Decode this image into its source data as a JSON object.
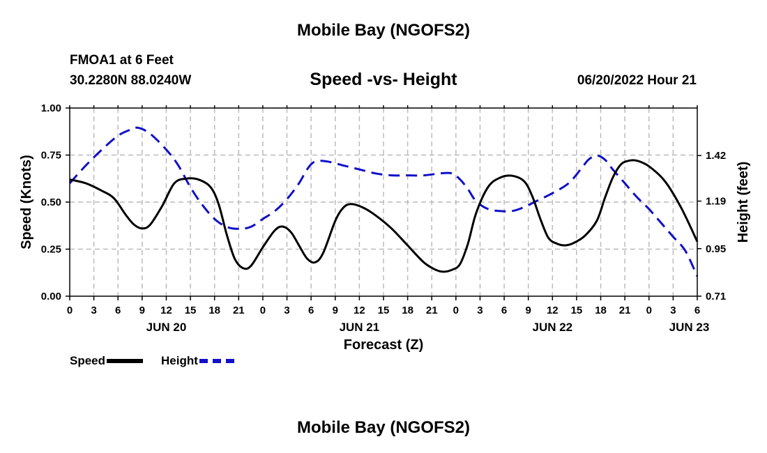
{
  "page": {
    "title_top": "Mobile Bay (NGOFS2)",
    "station": "FMOA1 at 6 Feet",
    "coords": "30.2280N  88.0240W",
    "subtitle": "Speed -vs- Height",
    "timestamp": "06/20/2022 Hour 21",
    "title_bottom": "Mobile Bay (NGOFS2)"
  },
  "chart_data": {
    "type": "line",
    "xlabel": "Forecast (Z)",
    "ylabel_left": "Speed (Knots)",
    "ylabel_right": "Height (feet)",
    "x_unit": "hours from 06/20 00Z",
    "xlim": [
      0,
      78
    ],
    "ylim_left": [
      0,
      1
    ],
    "ylim_right": [
      0.71,
      1.66
    ],
    "left_ticks": [
      "0.00",
      "0.25",
      "0.50",
      "0.75",
      "1.00"
    ],
    "left_tick_values": [
      0,
      0.25,
      0.5,
      0.75,
      1.0
    ],
    "right_ticks": [
      "0.71",
      "0.95",
      "1.19",
      "1.42"
    ],
    "right_tick_values": [
      0.71,
      0.95,
      1.19,
      1.42
    ],
    "x_tick_labels": [
      "0",
      "3",
      "6",
      "9",
      "12",
      "15",
      "18",
      "21",
      "0",
      "3",
      "6",
      "9",
      "12",
      "15",
      "18",
      "21",
      "0",
      "3",
      "6",
      "9",
      "12",
      "15",
      "18",
      "21",
      "0",
      "3",
      "6"
    ],
    "x_tick_values": [
      0,
      3,
      6,
      9,
      12,
      15,
      18,
      21,
      24,
      27,
      30,
      33,
      36,
      39,
      42,
      45,
      48,
      51,
      54,
      57,
      60,
      63,
      66,
      69,
      72,
      75,
      78
    ],
    "date_labels": [
      {
        "label": "JUN 20",
        "x": 12
      },
      {
        "label": "JUN 21",
        "x": 36
      },
      {
        "label": "JUN 22",
        "x": 60
      },
      {
        "label": "JUN 23",
        "x": 77
      }
    ],
    "grid": true,
    "legend_placement": "bottom-left",
    "series": [
      {
        "name": "Speed",
        "axis": "left",
        "color": "#000000",
        "style": "solid",
        "points": [
          [
            0,
            0.62
          ],
          [
            2,
            0.6
          ],
          [
            4,
            0.56
          ],
          [
            5.5,
            0.52
          ],
          [
            7,
            0.43
          ],
          [
            8,
            0.38
          ],
          [
            9,
            0.36
          ],
          [
            10,
            0.38
          ],
          [
            11.5,
            0.48
          ],
          [
            13,
            0.6
          ],
          [
            14.5,
            0.625
          ],
          [
            16,
            0.62
          ],
          [
            17.5,
            0.58
          ],
          [
            18.5,
            0.49
          ],
          [
            19.5,
            0.33
          ],
          [
            20.5,
            0.2
          ],
          [
            21.5,
            0.15
          ],
          [
            22.5,
            0.16
          ],
          [
            24,
            0.26
          ],
          [
            25.5,
            0.35
          ],
          [
            26.5,
            0.37
          ],
          [
            27.5,
            0.34
          ],
          [
            28.5,
            0.27
          ],
          [
            29.5,
            0.2
          ],
          [
            30.5,
            0.18
          ],
          [
            31.5,
            0.23
          ],
          [
            33,
            0.4
          ],
          [
            34,
            0.47
          ],
          [
            35,
            0.49
          ],
          [
            36.5,
            0.47
          ],
          [
            38,
            0.43
          ],
          [
            40,
            0.36
          ],
          [
            42,
            0.27
          ],
          [
            44,
            0.18
          ],
          [
            45.5,
            0.14
          ],
          [
            46.5,
            0.13
          ],
          [
            47.5,
            0.14
          ],
          [
            48.5,
            0.17
          ],
          [
            49.5,
            0.28
          ],
          [
            50.5,
            0.44
          ],
          [
            52,
            0.58
          ],
          [
            53.5,
            0.63
          ],
          [
            55,
            0.64
          ],
          [
            56.5,
            0.61
          ],
          [
            57.5,
            0.53
          ],
          [
            58.5,
            0.41
          ],
          [
            59.5,
            0.31
          ],
          [
            60.5,
            0.28
          ],
          [
            61.5,
            0.27
          ],
          [
            62.5,
            0.28
          ],
          [
            64,
            0.32
          ],
          [
            65.5,
            0.4
          ],
          [
            66.5,
            0.52
          ],
          [
            67.5,
            0.63
          ],
          [
            68.5,
            0.7
          ],
          [
            69.5,
            0.72
          ],
          [
            70.5,
            0.72
          ],
          [
            72,
            0.69
          ],
          [
            74,
            0.61
          ],
          [
            76,
            0.47
          ],
          [
            78,
            0.29
          ]
        ]
      },
      {
        "name": "Height",
        "axis": "right",
        "color": "#1010c8",
        "style": "dashed",
        "points": [
          [
            0,
            1.28
          ],
          [
            2,
            1.37
          ],
          [
            4,
            1.45
          ],
          [
            6,
            1.52
          ],
          [
            7.5,
            1.55
          ],
          [
            8.5,
            1.56
          ],
          [
            10,
            1.53
          ],
          [
            12,
            1.45
          ],
          [
            13.5,
            1.37
          ],
          [
            15,
            1.26
          ],
          [
            16.5,
            1.17
          ],
          [
            18,
            1.1
          ],
          [
            19.5,
            1.06
          ],
          [
            21,
            1.05
          ],
          [
            22.5,
            1.06
          ],
          [
            24,
            1.1
          ],
          [
            25.5,
            1.14
          ],
          [
            27,
            1.2
          ],
          [
            28.5,
            1.28
          ],
          [
            29.5,
            1.35
          ],
          [
            30.5,
            1.39
          ],
          [
            32,
            1.39
          ],
          [
            34,
            1.37
          ],
          [
            36,
            1.35
          ],
          [
            38,
            1.33
          ],
          [
            40,
            1.32
          ],
          [
            42,
            1.32
          ],
          [
            44,
            1.32
          ],
          [
            46,
            1.33
          ],
          [
            47.5,
            1.33
          ],
          [
            48.5,
            1.3
          ],
          [
            49.5,
            1.25
          ],
          [
            50.5,
            1.19
          ],
          [
            52,
            1.15
          ],
          [
            53.5,
            1.14
          ],
          [
            55,
            1.14
          ],
          [
            56.5,
            1.16
          ],
          [
            58,
            1.19
          ],
          [
            60,
            1.23
          ],
          [
            62,
            1.28
          ],
          [
            63.5,
            1.35
          ],
          [
            64.5,
            1.4
          ],
          [
            65.5,
            1.42
          ],
          [
            66.5,
            1.4
          ],
          [
            67.5,
            1.35
          ],
          [
            69,
            1.28
          ],
          [
            70.5,
            1.21
          ],
          [
            72,
            1.15
          ],
          [
            73.5,
            1.08
          ],
          [
            75,
            1.01
          ],
          [
            76.5,
            0.94
          ],
          [
            78,
            0.81
          ]
        ]
      }
    ]
  }
}
